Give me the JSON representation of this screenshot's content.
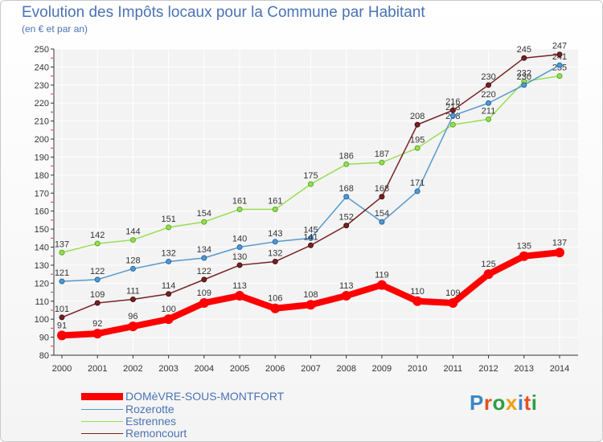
{
  "title": "Evolution des Impôts locaux pour la Commune par Habitant",
  "subtitle": "(en € et par an)",
  "logo": "Proxiti",
  "chart_data": {
    "type": "line",
    "title": "Evolution des Impôts locaux pour la Commune par Habitant",
    "subtitle": "(en € et par an)",
    "x": [
      2000,
      2001,
      2002,
      2003,
      2004,
      2005,
      2006,
      2007,
      2008,
      2009,
      2010,
      2011,
      2012,
      2013,
      2014
    ],
    "ylim": [
      80,
      250
    ],
    "yticks": [
      80,
      90,
      100,
      110,
      120,
      130,
      140,
      150,
      160,
      170,
      180,
      190,
      200,
      210,
      220,
      230,
      240,
      250
    ],
    "grid": true,
    "legend_position": "bottom-left",
    "series": [
      {
        "name": "Estrennes",
        "color": "#99dd55",
        "values": [
          137,
          142,
          144,
          151,
          154,
          161,
          161,
          175,
          186,
          187,
          195,
          208,
          211,
          232,
          235
        ]
      },
      {
        "name": "Rozerotte",
        "color": "#5599cc",
        "values": [
          121,
          122,
          128,
          132,
          134,
          140,
          143,
          145,
          168,
          154,
          171,
          213,
          220,
          230,
          241
        ]
      },
      {
        "name": "Remoncourt",
        "color": "#772222",
        "values": [
          101,
          109,
          111,
          114,
          122,
          130,
          132,
          141,
          152,
          168,
          208,
          216,
          230,
          245,
          247
        ]
      },
      {
        "name": "DOMèVRE-SOUS-MONTFORT",
        "color": "#ff0000",
        "values": [
          91,
          92,
          96,
          100,
          109,
          113,
          106,
          108,
          113,
          119,
          110,
          109,
          125,
          135,
          137
        ]
      }
    ]
  }
}
